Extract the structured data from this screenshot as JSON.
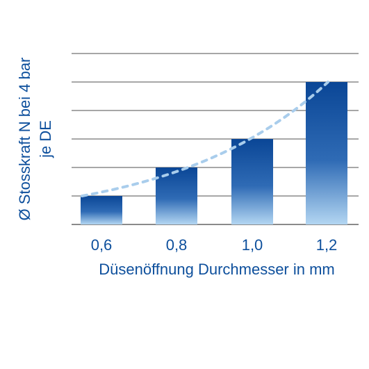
{
  "chart_data": {
    "type": "bar",
    "categories": [
      "0,6",
      "0,8",
      "1,0",
      "1,2"
    ],
    "values": [
      1,
      2,
      3,
      5
    ],
    "ylim": [
      0,
      6
    ],
    "grid": true,
    "legend": "none",
    "xlabel": "Düsenöffnung Durchmesser in mm",
    "ylabel_lines": [
      "Ø Stosskraft N bei 4 bar",
      "je DE"
    ],
    "trend": {
      "type": "exponential",
      "style": "dotted",
      "color": "#a9cdec",
      "values": [
        1,
        1.85,
        3,
        5
      ]
    },
    "colors": {
      "bar_top": "#0a4696",
      "bar_bottom": "#b3d6f2",
      "grid": "#8a8a8a",
      "text": "#0d4f9c"
    }
  }
}
